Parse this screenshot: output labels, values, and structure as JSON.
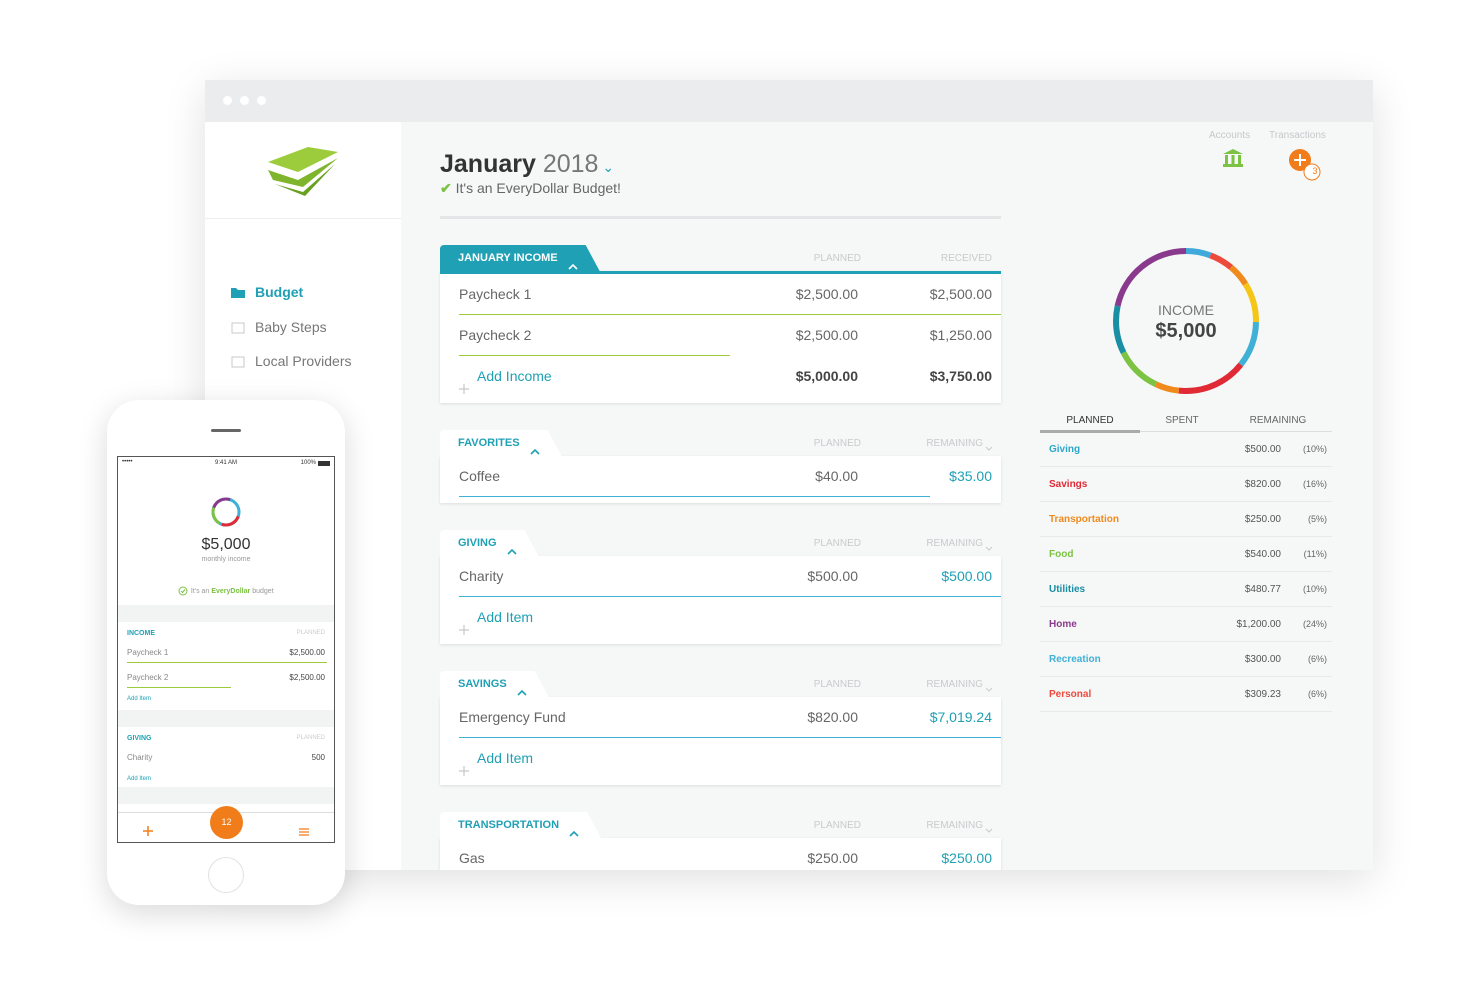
{
  "sidebar": {
    "nav": [
      "Budget",
      "Baby Steps",
      "Local Providers"
    ]
  },
  "header": {
    "month": "January",
    "year": "2018",
    "subtitle": "It's an EveryDollar Budget!"
  },
  "toolbar": {
    "accounts": "Accounts",
    "transactions": "Transactions",
    "badge": "3"
  },
  "groups": [
    {
      "title": "JANUARY INCOME",
      "col1": "PLANNED",
      "col2": "RECEIVED",
      "rows": [
        [
          "Paycheck 1",
          "$2,500.00",
          "$2,500.00"
        ],
        [
          "Paycheck 2",
          "$2,500.00",
          "$1,250.00"
        ]
      ],
      "add": "Add Income",
      "totals": [
        "$5,000.00",
        "$3,750.00"
      ]
    },
    {
      "title": "FAVORITES",
      "col1": "PLANNED",
      "col2": "REMAINING",
      "rows": [
        [
          "Coffee",
          "$40.00",
          "$35.00"
        ]
      ]
    },
    {
      "title": "GIVING",
      "col1": "PLANNED",
      "col2": "REMAINING",
      "rows": [
        [
          "Charity",
          "$500.00",
          "$500.00"
        ]
      ],
      "add": "Add Item"
    },
    {
      "title": "SAVINGS",
      "col1": "PLANNED",
      "col2": "REMAINING",
      "rows": [
        [
          "Emergency Fund",
          "$820.00",
          "$7,019.24"
        ]
      ],
      "add": "Add Item"
    },
    {
      "title": "TRANSPORTATION",
      "col1": "PLANNED",
      "col2": "REMAINING",
      "rows": [
        [
          "Gas",
          "$250.00",
          "$250.00"
        ]
      ]
    }
  ],
  "summary": {
    "donut_label": "INCOME",
    "donut_value": "$5,000",
    "tabs": [
      "PLANNED",
      "SPENT",
      "REMAINING"
    ],
    "rows": [
      {
        "name": "Giving",
        "amount": "$500.00",
        "pct": "(10%)",
        "color": "#2ba8c9"
      },
      {
        "name": "Savings",
        "amount": "$820.00",
        "pct": "(16%)",
        "color": "#e02a35"
      },
      {
        "name": "Transportation",
        "amount": "$250.00",
        "pct": "(5%)",
        "color": "#f08a1c"
      },
      {
        "name": "Food",
        "amount": "$540.00",
        "pct": "(11%)",
        "color": "#7cc243"
      },
      {
        "name": "Utilities",
        "amount": "$480.77",
        "pct": "(10%)",
        "color": "#1a8ea3"
      },
      {
        "name": "Home",
        "amount": "$1,200.00",
        "pct": "(24%)",
        "color": "#8a3a8c"
      },
      {
        "name": "Recreation",
        "amount": "$300.00",
        "pct": "(6%)",
        "color": "#3fb0d6"
      },
      {
        "name": "Personal",
        "amount": "$309.23",
        "pct": "(6%)",
        "color": "#ee4a3c"
      }
    ]
  },
  "phone": {
    "carrier": "•••••",
    "time": "9:41 AM",
    "battery": "100%",
    "amount": "$5,000",
    "caption": "monthly income",
    "note": [
      "It's an",
      "EveryDollar",
      "budget"
    ],
    "groups": [
      {
        "title": "INCOME",
        "col": "PLANNED",
        "rows": [
          [
            "Paycheck 1",
            "$2,500.00"
          ],
          [
            "Paycheck 2",
            "$2,500.00"
          ]
        ],
        "add": "Add Item"
      },
      {
        "title": "GIVING",
        "col": "PLANNED",
        "rows": [
          [
            "Charity",
            "500"
          ]
        ],
        "add": "Add Item"
      }
    ],
    "badge": "12"
  }
}
